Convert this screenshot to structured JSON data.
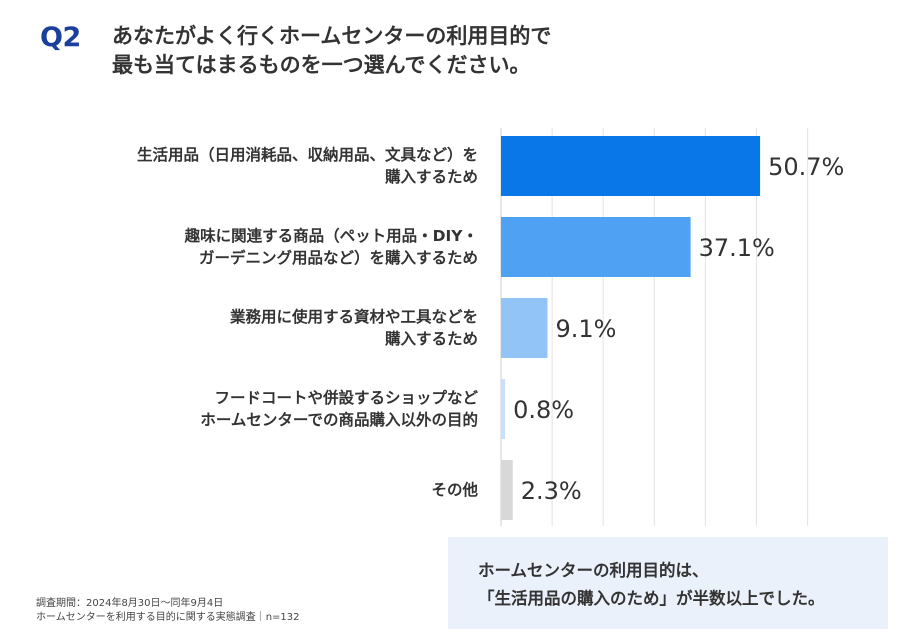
{
  "question": {
    "number": "Q2",
    "line1": "あなたがよく行くホームセンターの利用目的で",
    "line2": "最も当てはまるものを一つ選んでください。"
  },
  "chart_data": {
    "type": "bar",
    "orientation": "horizontal",
    "categories": [
      [
        "生活用品（日用消耗品、収納用品、文具など）を",
        "購入するため"
      ],
      [
        "趣味に関連する商品（ペット用品・DIY・",
        "ガーデニング用品など）を購入するため"
      ],
      [
        "業務用に使用する資材や工具などを",
        "購入するため"
      ],
      [
        "フードコートや併設するショップなど",
        "ホームセンターでの商品購入以外の目的"
      ],
      [
        "その他"
      ]
    ],
    "values": [
      50.7,
      37.1,
      9.1,
      0.8,
      2.3
    ],
    "value_labels": [
      "50.7%",
      "37.1%",
      "9.1%",
      "0.8%",
      "2.3%"
    ],
    "unit": "%",
    "xlim": [
      0,
      60
    ],
    "grid": true,
    "colors": [
      "#0a77e8",
      "#4ea1f3",
      "#93c4f8",
      "#c8e0fb",
      "#d8d8d8"
    ]
  },
  "note": {
    "line1": "調査期間：2024年8月30日〜同年9月4日",
    "line2": "ホームセンターを利用する目的に関する実態調査｜n=132"
  },
  "summary": {
    "line1": "ホームセンターの利用目的は、",
    "line2": "「生活用品の購入のため」が半数以上でした。"
  }
}
